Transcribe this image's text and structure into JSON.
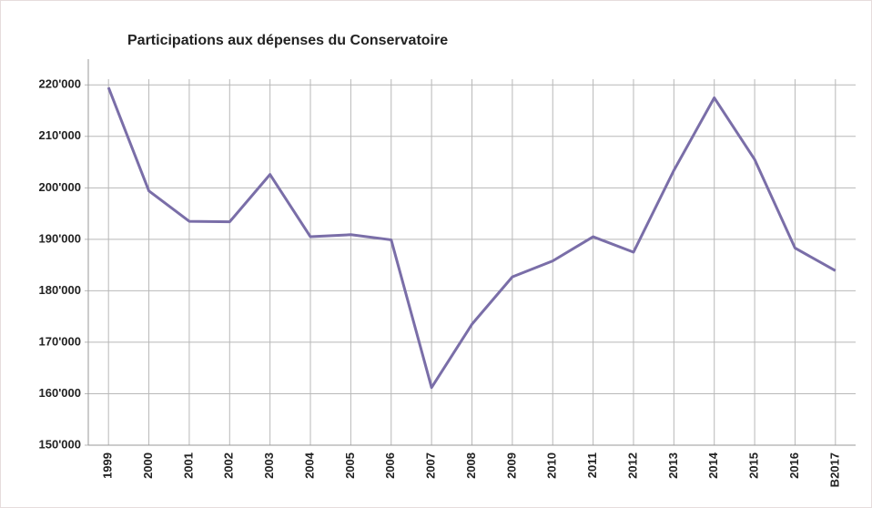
{
  "chart_data": {
    "type": "line",
    "title": "Participations aux dépenses du Conservatoire",
    "categories": [
      "1999",
      "2000",
      "2001",
      "2002",
      "2003",
      "2004",
      "2005",
      "2006",
      "2007",
      "2008",
      "2009",
      "2010",
      "2011",
      "2012",
      "2013",
      "2014",
      "2015",
      "2016",
      "B2017"
    ],
    "series": [
      {
        "name": null,
        "color": "#7a6ea8",
        "values": [
          219500,
          199400,
          193500,
          193400,
          202600,
          190500,
          190900,
          189900,
          161200,
          173500,
          182700,
          185800,
          190500,
          187500,
          203400,
          217500,
          205500,
          188300,
          183900
        ]
      }
    ],
    "ylim": [
      150000,
      225000
    ],
    "yticks": [
      {
        "value": 150000,
        "label": "150'000"
      },
      {
        "value": 160000,
        "label": "160'000"
      },
      {
        "value": 170000,
        "label": "170'000"
      },
      {
        "value": 180000,
        "label": "180'000"
      },
      {
        "value": 190000,
        "label": "190'000"
      },
      {
        "value": 200000,
        "label": "200'000"
      },
      {
        "value": 210000,
        "label": "210'000"
      },
      {
        "value": 220000,
        "label": "220'000"
      }
    ],
    "grid": true
  }
}
